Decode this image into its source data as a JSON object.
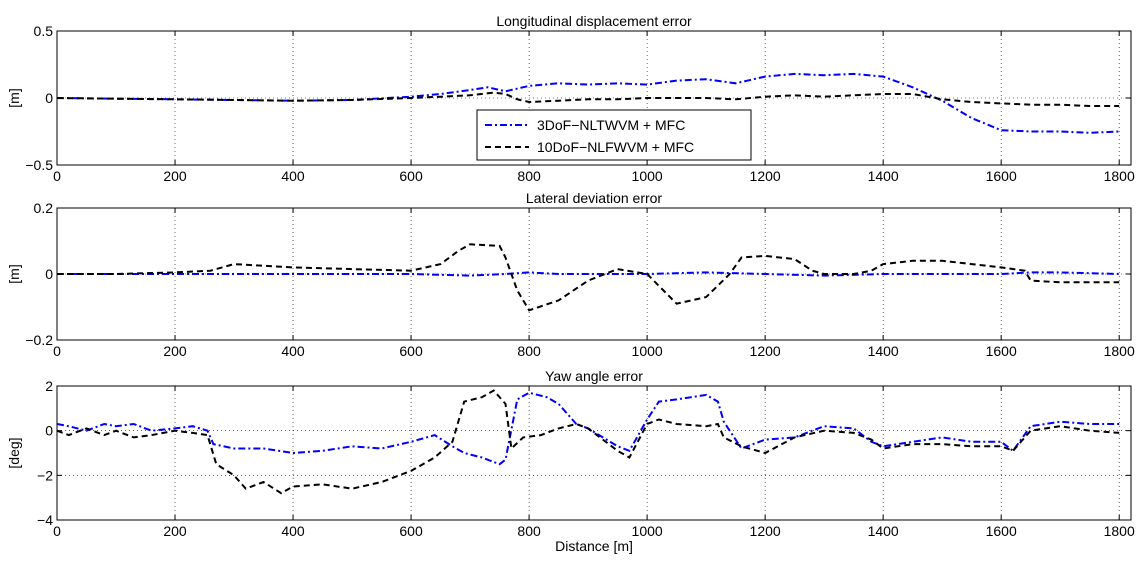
{
  "chart_data": [
    {
      "type": "line",
      "title": "Longitudinal displacement error",
      "xlabel": "",
      "ylabel": "[m]",
      "xlim": [
        0,
        1820
      ],
      "ylim": [
        -0.5,
        0.5
      ],
      "xticks": [
        0,
        200,
        400,
        600,
        800,
        1000,
        1200,
        1400,
        1600,
        1800
      ],
      "yticks": [
        -0.5,
        0,
        0.5
      ],
      "ytick_labels": [
        "−0.5",
        "0",
        "0.5"
      ],
      "grid": true,
      "legend": {
        "placement": "center-bottom",
        "entries": [
          "3DoF−NLTWVM + MFC",
          "10DoF−NLFWVM + MFC"
        ]
      },
      "series": [
        {
          "name": "3DoF−NLTWVM + MFC",
          "color": "#0000ff",
          "style": "dashdot",
          "x": [
            0,
            100,
            200,
            300,
            400,
            500,
            600,
            650,
            700,
            730,
            760,
            800,
            850,
            900,
            950,
            1000,
            1050,
            1100,
            1150,
            1200,
            1250,
            1300,
            1350,
            1400,
            1450,
            1500,
            1550,
            1600,
            1650,
            1700,
            1750,
            1800
          ],
          "y": [
            0.0,
            -0.005,
            -0.01,
            -0.015,
            -0.02,
            -0.015,
            0.01,
            0.03,
            0.06,
            0.08,
            0.05,
            0.09,
            0.11,
            0.1,
            0.11,
            0.1,
            0.13,
            0.14,
            0.11,
            0.16,
            0.18,
            0.17,
            0.18,
            0.16,
            0.08,
            -0.02,
            -0.15,
            -0.24,
            -0.25,
            -0.25,
            -0.26,
            -0.25
          ]
        },
        {
          "name": "10DoF−NLFWVM + MFC",
          "color": "#000000",
          "style": "dashed",
          "x": [
            0,
            100,
            200,
            300,
            400,
            500,
            600,
            650,
            700,
            740,
            760,
            780,
            800,
            850,
            900,
            950,
            1000,
            1050,
            1100,
            1150,
            1200,
            1250,
            1300,
            1350,
            1400,
            1450,
            1500,
            1550,
            1600,
            1650,
            1700,
            1750,
            1800
          ],
          "y": [
            0.0,
            -0.005,
            -0.01,
            -0.015,
            -0.02,
            -0.015,
            0.0,
            0.01,
            0.02,
            0.04,
            0.03,
            -0.01,
            -0.03,
            -0.02,
            -0.01,
            -0.01,
            0.0,
            0.0,
            0.0,
            -0.01,
            0.01,
            0.02,
            0.01,
            0.02,
            0.03,
            0.03,
            -0.01,
            -0.03,
            -0.04,
            -0.05,
            -0.05,
            -0.06,
            -0.06
          ]
        }
      ]
    },
    {
      "type": "line",
      "title": "Lateral deviation error",
      "xlabel": "",
      "ylabel": "[m]",
      "xlim": [
        0,
        1820
      ],
      "ylim": [
        -0.2,
        0.2
      ],
      "xticks": [
        0,
        200,
        400,
        600,
        800,
        1000,
        1200,
        1400,
        1600,
        1800
      ],
      "yticks": [
        -0.2,
        0,
        0.2
      ],
      "ytick_labels": [
        "−0.2",
        "0",
        "0.2"
      ],
      "grid": true,
      "series": [
        {
          "name": "3DoF−NLTWVM + MFC",
          "color": "#0000ff",
          "style": "dashdot",
          "x": [
            0,
            200,
            400,
            600,
            700,
            760,
            800,
            850,
            900,
            1000,
            1100,
            1200,
            1300,
            1400,
            1500,
            1600,
            1650,
            1700,
            1800
          ],
          "y": [
            0.0,
            0.0,
            0.0,
            0.0,
            -0.005,
            0.0,
            0.005,
            0.0,
            0.0,
            0.0,
            0.005,
            0.0,
            -0.005,
            0.0,
            0.0,
            0.0,
            0.005,
            0.005,
            0.0
          ]
        },
        {
          "name": "10DoF−NLFWVM + MFC",
          "color": "#000000",
          "style": "dashed",
          "x": [
            0,
            100,
            200,
            260,
            300,
            400,
            500,
            600,
            650,
            680,
            700,
            750,
            760,
            780,
            800,
            850,
            900,
            950,
            1000,
            1050,
            1100,
            1140,
            1160,
            1200,
            1250,
            1280,
            1300,
            1350,
            1380,
            1400,
            1450,
            1500,
            1550,
            1600,
            1640,
            1650,
            1700,
            1800
          ],
          "y": [
            0.0,
            0.0,
            0.005,
            0.01,
            0.03,
            0.02,
            0.015,
            0.01,
            0.03,
            0.07,
            0.09,
            0.085,
            0.05,
            -0.05,
            -0.11,
            -0.08,
            -0.02,
            0.015,
            0.0,
            -0.09,
            -0.07,
            0.0,
            0.05,
            0.055,
            0.045,
            0.01,
            0.0,
            0.0,
            0.01,
            0.03,
            0.04,
            0.04,
            0.03,
            0.02,
            0.01,
            -0.02,
            -0.025,
            -0.025
          ]
        }
      ]
    },
    {
      "type": "line",
      "title": "Yaw angle error",
      "xlabel": "Distance [m]",
      "ylabel": "[deg]",
      "xlim": [
        0,
        1820
      ],
      "ylim": [
        -4,
        2
      ],
      "xticks": [
        0,
        200,
        400,
        600,
        800,
        1000,
        1200,
        1400,
        1600,
        1800
      ],
      "yticks": [
        -4,
        -2,
        0,
        2
      ],
      "ytick_labels": [
        "−4",
        "−2",
        "0",
        "2"
      ],
      "grid": true,
      "series": [
        {
          "name": "3DoF−NLTWVM + MFC",
          "color": "#0000ff",
          "style": "dashdot",
          "x": [
            0,
            20,
            50,
            80,
            100,
            130,
            160,
            200,
            230,
            255,
            265,
            300,
            350,
            400,
            450,
            500,
            550,
            600,
            640,
            670,
            690,
            720,
            750,
            760,
            780,
            800,
            830,
            850,
            880,
            900,
            950,
            970,
            1000,
            1020,
            1050,
            1100,
            1120,
            1130,
            1160,
            1200,
            1250,
            1300,
            1350,
            1380,
            1400,
            1450,
            1500,
            1550,
            1600,
            1620,
            1650,
            1700,
            1750,
            1800
          ],
          "y": [
            0.3,
            0.2,
            0.0,
            0.3,
            0.2,
            0.3,
            0.0,
            0.1,
            0.2,
            0.0,
            -0.6,
            -0.8,
            -0.8,
            -1.0,
            -0.9,
            -0.7,
            -0.8,
            -0.5,
            -0.2,
            -0.7,
            -1.0,
            -1.2,
            -1.5,
            -1.3,
            1.4,
            1.7,
            1.5,
            1.2,
            0.3,
            0.1,
            -0.7,
            -0.9,
            0.5,
            1.3,
            1.4,
            1.6,
            1.3,
            0.4,
            -0.8,
            -0.4,
            -0.3,
            0.2,
            0.1,
            -0.5,
            -0.7,
            -0.5,
            -0.3,
            -0.5,
            -0.5,
            -0.9,
            0.2,
            0.4,
            0.3,
            0.3
          ]
        },
        {
          "name": "10DoF−NLFWVM + MFC",
          "color": "#000000",
          "style": "dashed",
          "x": [
            0,
            20,
            50,
            80,
            100,
            130,
            160,
            200,
            230,
            255,
            270,
            300,
            320,
            350,
            380,
            400,
            450,
            500,
            550,
            600,
            640,
            670,
            690,
            720,
            740,
            760,
            770,
            790,
            820,
            850,
            880,
            900,
            950,
            970,
            1000,
            1020,
            1050,
            1100,
            1120,
            1130,
            1160,
            1200,
            1250,
            1300,
            1350,
            1380,
            1400,
            1450,
            1500,
            1550,
            1600,
            1620,
            1650,
            1700,
            1750,
            1800
          ],
          "y": [
            0.0,
            -0.2,
            0.1,
            -0.2,
            0.0,
            -0.3,
            -0.2,
            0.0,
            -0.1,
            -0.2,
            -1.5,
            -2.0,
            -2.6,
            -2.3,
            -2.8,
            -2.5,
            -2.4,
            -2.6,
            -2.3,
            -1.8,
            -1.2,
            -0.5,
            1.3,
            1.5,
            1.8,
            1.2,
            -0.8,
            -0.3,
            -0.2,
            0.1,
            0.3,
            0.1,
            -0.9,
            -1.2,
            0.3,
            0.5,
            0.3,
            0.2,
            0.3,
            -0.3,
            -0.7,
            -1.0,
            -0.3,
            0.0,
            -0.1,
            -0.4,
            -0.8,
            -0.6,
            -0.6,
            -0.7,
            -0.7,
            -0.9,
            0.0,
            0.2,
            0.0,
            -0.1
          ]
        }
      ]
    }
  ]
}
